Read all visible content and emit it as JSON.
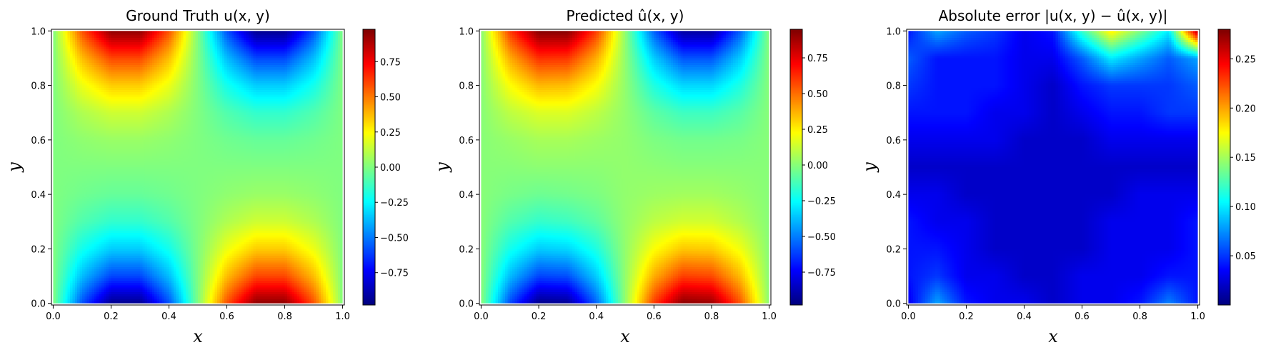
{
  "chart_data": [
    {
      "type": "heatmap",
      "title": "Ground Truth u(x, y)",
      "xlabel": "x",
      "ylabel": "y",
      "xlim": [
        0.0,
        1.0
      ],
      "ylim": [
        0.0,
        1.0
      ],
      "xticks": [
        "0.0",
        "0.2",
        "0.4",
        "0.6",
        "0.8",
        "1.0"
      ],
      "yticks": [
        "0.0",
        "0.2",
        "0.4",
        "0.6",
        "0.8",
        "1.0"
      ],
      "colormap": "jet",
      "colorbar": {
        "range": [
          -0.98,
          0.98
        ],
        "ticks": [
          -0.75,
          -0.5,
          -0.25,
          0.0,
          0.25,
          0.5,
          0.75
        ],
        "tick_labels": [
          "−0.75",
          "−0.50",
          "−0.25",
          "0.00",
          "0.25",
          "0.50",
          "0.75"
        ]
      },
      "field": {
        "grid": [
          11,
          11
        ],
        "x": [
          0.0,
          0.1,
          0.2,
          0.3,
          0.4,
          0.5,
          0.6,
          0.7,
          0.8,
          0.9,
          1.0
        ],
        "y": [
          0.0,
          0.1,
          0.2,
          0.3,
          0.4,
          0.5,
          0.6,
          0.7,
          0.8,
          0.9,
          1.0
        ],
        "z_rows_bottom_to_top": [
          [
            0.0,
            -0.58,
            -0.95,
            -0.95,
            -0.58,
            0.0,
            0.58,
            0.95,
            0.95,
            0.58,
            0.0
          ],
          [
            0.0,
            -0.37,
            -0.6,
            -0.6,
            -0.37,
            0.0,
            0.37,
            0.6,
            0.6,
            0.37,
            0.0
          ],
          [
            0.0,
            -0.21,
            -0.34,
            -0.34,
            -0.21,
            0.0,
            0.21,
            0.34,
            0.34,
            0.21,
            0.0
          ],
          [
            0.0,
            -0.09,
            -0.15,
            -0.15,
            -0.09,
            0.0,
            0.09,
            0.15,
            0.15,
            0.09,
            0.0
          ],
          [
            0.0,
            -0.03,
            -0.05,
            -0.05,
            -0.03,
            0.0,
            0.03,
            0.05,
            0.05,
            0.03,
            0.0
          ],
          [
            0.0,
            0.0,
            0.0,
            0.0,
            0.0,
            0.0,
            0.0,
            0.0,
            0.0,
            0.0,
            0.0
          ],
          [
            0.0,
            0.03,
            0.05,
            0.05,
            0.03,
            0.0,
            -0.03,
            -0.05,
            -0.05,
            -0.03,
            0.0
          ],
          [
            0.0,
            0.09,
            0.15,
            0.15,
            0.09,
            0.0,
            -0.09,
            -0.15,
            -0.15,
            -0.09,
            0.0
          ],
          [
            0.0,
            0.21,
            0.34,
            0.34,
            0.21,
            0.0,
            -0.21,
            -0.34,
            -0.34,
            -0.21,
            0.0
          ],
          [
            0.0,
            0.37,
            0.6,
            0.6,
            0.37,
            0.0,
            -0.37,
            -0.6,
            -0.6,
            -0.37,
            0.0
          ],
          [
            0.0,
            0.58,
            0.95,
            0.95,
            0.58,
            0.0,
            -0.58,
            -0.95,
            -0.95,
            -0.58,
            0.0
          ]
        ]
      }
    },
    {
      "type": "heatmap",
      "title": "Predicted û(x, y)",
      "xlabel": "x",
      "ylabel": "y",
      "xlim": [
        0.0,
        1.0
      ],
      "ylim": [
        0.0,
        1.0
      ],
      "xticks": [
        "0.0",
        "0.2",
        "0.4",
        "0.6",
        "0.8",
        "1.0"
      ],
      "yticks": [
        "0.0",
        "0.2",
        "0.4",
        "0.6",
        "0.8",
        "1.0"
      ],
      "colormap": "jet",
      "colorbar": {
        "range": [
          -0.98,
          0.95
        ],
        "ticks": [
          -0.75,
          -0.5,
          -0.25,
          0.0,
          0.25,
          0.5,
          0.75
        ],
        "tick_labels": [
          "−0.75",
          "−0.50",
          "−0.25",
          "0.00",
          "0.25",
          "0.50",
          "0.75"
        ]
      },
      "field": {
        "grid": [
          11,
          11
        ],
        "x": [
          0.0,
          0.1,
          0.2,
          0.3,
          0.4,
          0.5,
          0.6,
          0.7,
          0.8,
          0.9,
          1.0
        ],
        "y": [
          0.0,
          0.1,
          0.2,
          0.3,
          0.4,
          0.5,
          0.6,
          0.7,
          0.8,
          0.9,
          1.0
        ],
        "z_rows_bottom_to_top": [
          [
            0.0,
            -0.6,
            -0.96,
            -0.94,
            -0.55,
            0.02,
            0.6,
            0.93,
            0.9,
            0.55,
            0.0
          ],
          [
            0.0,
            -0.38,
            -0.61,
            -0.59,
            -0.35,
            0.02,
            0.38,
            0.59,
            0.57,
            0.35,
            0.0
          ],
          [
            0.0,
            -0.22,
            -0.35,
            -0.33,
            -0.2,
            0.02,
            0.22,
            0.33,
            0.32,
            0.2,
            0.0
          ],
          [
            0.0,
            -0.1,
            -0.16,
            -0.14,
            -0.08,
            0.02,
            0.1,
            0.14,
            0.14,
            0.08,
            0.0
          ],
          [
            0.0,
            -0.03,
            -0.05,
            -0.04,
            -0.02,
            0.02,
            0.04,
            0.05,
            0.05,
            0.03,
            0.0
          ],
          [
            0.0,
            0.0,
            0.01,
            0.01,
            0.01,
            0.02,
            0.01,
            0.0,
            0.0,
            0.0,
            0.0
          ],
          [
            0.0,
            0.03,
            0.06,
            0.06,
            0.04,
            0.02,
            -0.02,
            -0.04,
            -0.04,
            -0.03,
            0.0
          ],
          [
            0.0,
            0.1,
            0.16,
            0.16,
            0.1,
            0.02,
            -0.08,
            -0.14,
            -0.14,
            -0.09,
            0.0
          ],
          [
            0.0,
            0.22,
            0.36,
            0.35,
            0.22,
            0.02,
            -0.2,
            -0.33,
            -0.33,
            -0.2,
            0.0
          ],
          [
            0.0,
            0.38,
            0.62,
            0.61,
            0.38,
            0.02,
            -0.35,
            -0.58,
            -0.58,
            -0.35,
            0.0
          ],
          [
            0.0,
            0.6,
            0.94,
            0.94,
            0.6,
            0.02,
            -0.56,
            -0.92,
            -0.92,
            -0.56,
            0.0
          ]
        ]
      }
    },
    {
      "type": "heatmap",
      "title": "Absolute error |u(x, y) − û(x, y)|",
      "xlabel": "x",
      "ylabel": "y",
      "xlim": [
        0.0,
        1.0
      ],
      "ylim": [
        0.0,
        1.0
      ],
      "xticks": [
        "0.0",
        "0.2",
        "0.4",
        "0.6",
        "0.8",
        "1.0"
      ],
      "yticks": [
        "0.0",
        "0.2",
        "0.4",
        "0.6",
        "0.8",
        "1.0"
      ],
      "colormap": "jet",
      "colorbar": {
        "range": [
          0.0,
          0.28
        ],
        "ticks": [
          0.05,
          0.1,
          0.15,
          0.2,
          0.25
        ],
        "tick_labels": [
          "0.05",
          "0.10",
          "0.15",
          "0.20",
          "0.25"
        ]
      },
      "field": {
        "grid": [
          11,
          11
        ],
        "x": [
          0.0,
          0.1,
          0.2,
          0.3,
          0.4,
          0.5,
          0.6,
          0.7,
          0.8,
          0.9,
          1.0
        ],
        "y": [
          0.0,
          0.1,
          0.2,
          0.3,
          0.4,
          0.5,
          0.6,
          0.7,
          0.8,
          0.9,
          1.0
        ],
        "z_rows_bottom_to_top": [
          [
            0.03,
            0.08,
            0.04,
            0.03,
            0.03,
            0.02,
            0.03,
            0.03,
            0.04,
            0.07,
            0.04
          ],
          [
            0.04,
            0.05,
            0.03,
            0.03,
            0.02,
            0.02,
            0.03,
            0.03,
            0.03,
            0.04,
            0.04
          ],
          [
            0.04,
            0.04,
            0.03,
            0.02,
            0.02,
            0.02,
            0.02,
            0.03,
            0.03,
            0.03,
            0.04
          ],
          [
            0.04,
            0.03,
            0.03,
            0.02,
            0.02,
            0.02,
            0.02,
            0.03,
            0.03,
            0.03,
            0.04
          ],
          [
            0.03,
            0.03,
            0.02,
            0.02,
            0.02,
            0.02,
            0.02,
            0.02,
            0.03,
            0.03,
            0.03
          ],
          [
            0.02,
            0.02,
            0.02,
            0.02,
            0.02,
            0.02,
            0.02,
            0.02,
            0.02,
            0.02,
            0.02
          ],
          [
            0.03,
            0.03,
            0.03,
            0.03,
            0.02,
            0.02,
            0.02,
            0.03,
            0.03,
            0.03,
            0.03
          ],
          [
            0.04,
            0.04,
            0.04,
            0.03,
            0.03,
            0.02,
            0.03,
            0.04,
            0.04,
            0.05,
            0.05
          ],
          [
            0.05,
            0.04,
            0.04,
            0.04,
            0.03,
            0.02,
            0.04,
            0.05,
            0.05,
            0.05,
            0.06
          ],
          [
            0.06,
            0.04,
            0.04,
            0.04,
            0.03,
            0.03,
            0.06,
            0.1,
            0.08,
            0.06,
            0.08
          ],
          [
            0.04,
            0.08,
            0.06,
            0.05,
            0.03,
            0.04,
            0.12,
            0.18,
            0.14,
            0.1,
            0.27
          ]
        ]
      }
    }
  ]
}
